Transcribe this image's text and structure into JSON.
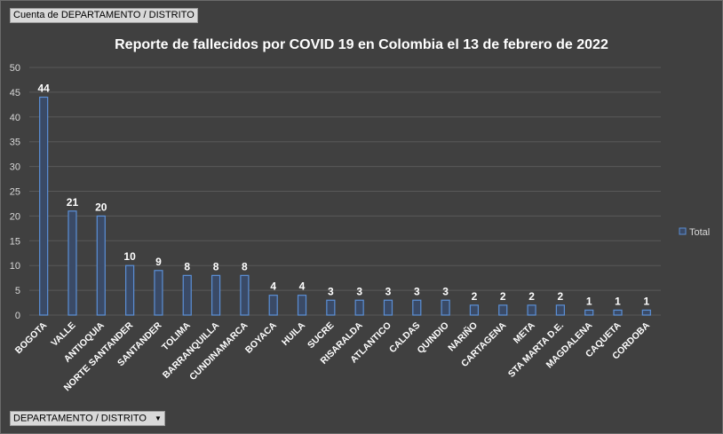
{
  "pivot": {
    "value_field": "Cuenta de DEPARTAMENTO / DISTRITO",
    "axis_field": "DEPARTAMENTO / DISTRITO"
  },
  "colors": {
    "background": "#404040",
    "bar_fill": "#3a4a66",
    "bar_edge": "#5b8fd6",
    "grid": "#595959",
    "text": "#ffffff"
  },
  "chart_data": {
    "type": "bar",
    "title": "Reporte de fallecidos por COVID 19 en Colombia el 13 de febrero de 2022",
    "xlabel": "",
    "ylabel": "",
    "ylim": [
      0,
      50
    ],
    "yticks": [
      0,
      5,
      10,
      15,
      20,
      25,
      30,
      35,
      40,
      45,
      50
    ],
    "grid": true,
    "legend_position": "right",
    "categories": [
      "BOGOTA",
      "VALLE",
      "ANTIOQUIA",
      "NORTE SANTANDER",
      "SANTANDER",
      "TOLIMA",
      "BARRANQUILLA",
      "CUNDINAMARCA",
      "BOYACA",
      "HUILA",
      "SUCRE",
      "RISARALDA",
      "ATLANTICO",
      "CALDAS",
      "QUINDIO",
      "NARIÑO",
      "CARTAGENA",
      "META",
      "STA MARTA D.E.",
      "MAGDALENA",
      "CAQUETA",
      "CORDOBA"
    ],
    "series": [
      {
        "name": "Total",
        "values": [
          44,
          21,
          20,
          10,
          9,
          8,
          8,
          8,
          4,
          4,
          3,
          3,
          3,
          3,
          3,
          2,
          2,
          2,
          2,
          1,
          1,
          1
        ]
      }
    ]
  }
}
